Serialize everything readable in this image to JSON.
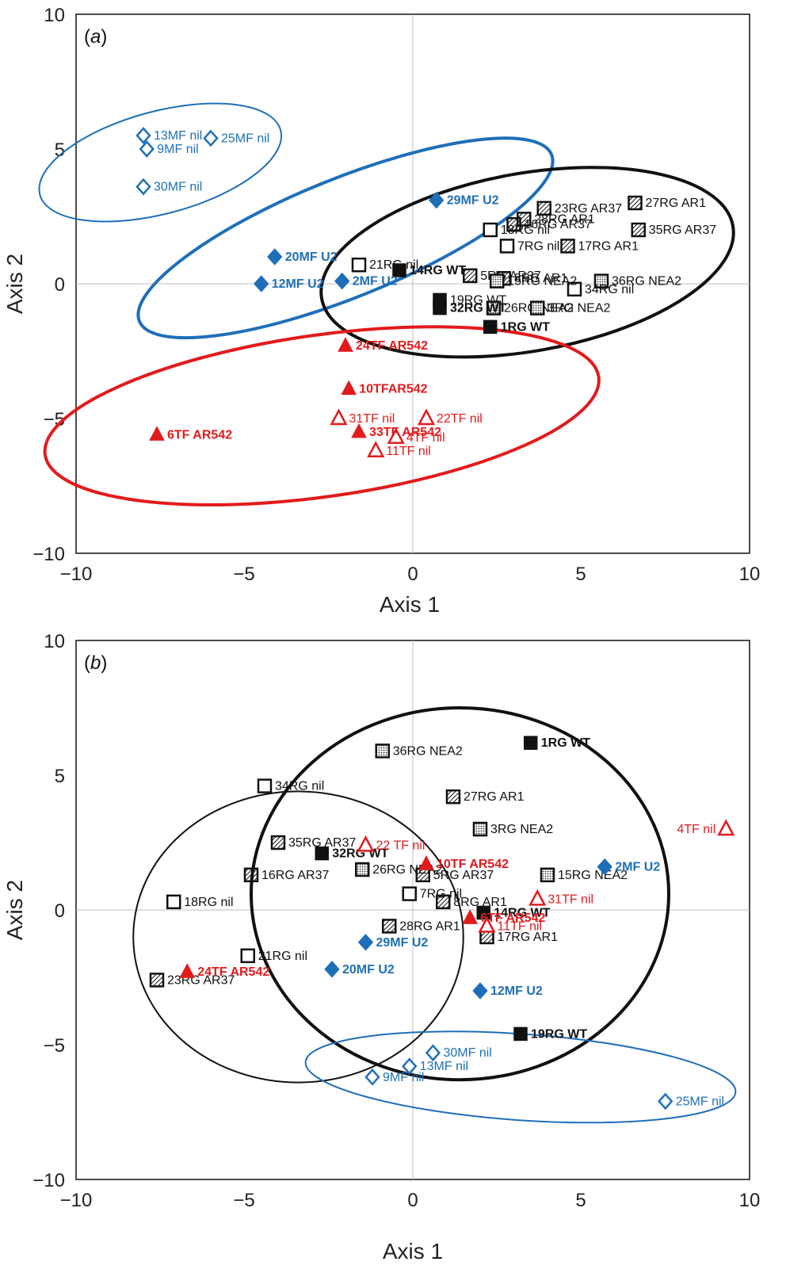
{
  "colors": {
    "rg": "#111111",
    "mf": "#1f6fb8",
    "tf": "#e31a1c",
    "grid": "#bdbdbd"
  },
  "chart_data": [
    {
      "type": "scatter",
      "panel_label": "a",
      "xlabel": "Axis 1",
      "ylabel": "Axis 2",
      "xlim": [
        -10,
        10
      ],
      "ylim": [
        -10,
        10
      ],
      "xticks": [
        "−10",
        "−5",
        "0",
        "5",
        "10"
      ],
      "yticks": [
        "10",
        "5",
        "0",
        "−5",
        "−10"
      ],
      "points": [
        {
          "label": "27RG AR1",
          "x": 6.6,
          "y": 3.0,
          "marker": "hatch",
          "color": "rg",
          "bold": false
        },
        {
          "label": "23RG AR37",
          "x": 3.9,
          "y": 2.8,
          "marker": "hatch",
          "color": "rg",
          "bold": false
        },
        {
          "label": "28RG AR1",
          "x": 3.3,
          "y": 2.4,
          "marker": "hatch",
          "color": "rg",
          "bold": false
        },
        {
          "label": "16RG AR37",
          "x": 3.0,
          "y": 2.2,
          "marker": "hatch",
          "color": "rg",
          "bold": false
        },
        {
          "label": "35RG AR37",
          "x": 6.7,
          "y": 2.0,
          "marker": "hatch",
          "color": "rg",
          "bold": false
        },
        {
          "label": "18RG nil",
          "x": 2.3,
          "y": 2.0,
          "marker": "open_square",
          "color": "rg",
          "bold": false
        },
        {
          "label": "17RG AR1",
          "x": 4.6,
          "y": 1.4,
          "marker": "hatch",
          "color": "rg",
          "bold": false
        },
        {
          "label": "21RG nil",
          "x": -1.6,
          "y": 0.7,
          "marker": "open_square",
          "color": "rg",
          "bold": false
        },
        {
          "label": "5RG AR37",
          "x": 1.7,
          "y": 0.3,
          "marker": "hatch",
          "color": "rg",
          "bold": false
        },
        {
          "label": "7RG nil",
          "x": 2.8,
          "y": 1.4,
          "marker": "open_square",
          "color": "rg",
          "bold": false
        },
        {
          "label": "36RG NEA2",
          "x": 5.6,
          "y": 0.1,
          "marker": "dots",
          "color": "rg",
          "bold": false
        },
        {
          "label": "8RG AR1",
          "x": 2.7,
          "y": 0.2,
          "marker": "hatch",
          "color": "rg",
          "bold": false
        },
        {
          "label": "34RG nil",
          "x": 4.8,
          "y": -0.2,
          "marker": "open_square",
          "color": "rg",
          "bold": false
        },
        {
          "label": "14RG WT",
          "x": -0.4,
          "y": 0.5,
          "marker": "filled_square",
          "color": "rg",
          "bold": true
        },
        {
          "label": "19RG WT",
          "x": 0.8,
          "y": -0.6,
          "marker": "filled_square",
          "color": "rg",
          "bold": false
        },
        {
          "label": "26RG NEA2",
          "x": 2.4,
          "y": -0.9,
          "marker": "dots",
          "color": "rg",
          "bold": false
        },
        {
          "label": "3RG NEA2",
          "x": 3.7,
          "y": -0.9,
          "marker": "dots",
          "color": "rg",
          "bold": false
        },
        {
          "label": "15RG NEA2",
          "x": 2.5,
          "y": 0.1,
          "marker": "dots",
          "color": "rg",
          "bold": false
        },
        {
          "label": "32RG WT",
          "x": 0.8,
          "y": -0.9,
          "marker": "filled_square",
          "color": "rg",
          "bold": true
        },
        {
          "label": "1RG WT",
          "x": 2.3,
          "y": -1.6,
          "marker": "filled_square",
          "color": "rg",
          "bold": true
        },
        {
          "label": "13MF nil",
          "x": -8.0,
          "y": 5.5,
          "marker": "open_diamond",
          "color": "mf",
          "bold": false
        },
        {
          "label": "25MF nil",
          "x": -6.0,
          "y": 5.4,
          "marker": "open_diamond",
          "color": "mf",
          "bold": false
        },
        {
          "label": "9MF nil",
          "x": -7.9,
          "y": 5.0,
          "marker": "open_diamond",
          "color": "mf",
          "bold": false
        },
        {
          "label": "30MF nil",
          "x": -8.0,
          "y": 3.6,
          "marker": "open_diamond",
          "color": "mf",
          "bold": false
        },
        {
          "label": "29MF U2",
          "x": 0.7,
          "y": 3.1,
          "marker": "filled_diamond",
          "color": "mf",
          "bold": true
        },
        {
          "label": "20MF U2",
          "x": -4.1,
          "y": 1.0,
          "marker": "filled_diamond",
          "color": "mf",
          "bold": true
        },
        {
          "label": "2MF U2",
          "x": -2.1,
          "y": 0.1,
          "marker": "filled_diamond",
          "color": "mf",
          "bold": true
        },
        {
          "label": "12MF U2",
          "x": -4.5,
          "y": 0.0,
          "marker": "filled_diamond",
          "color": "mf",
          "bold": true
        },
        {
          "label": "24TF AR542",
          "x": -2.0,
          "y": -2.3,
          "marker": "filled_triangle",
          "color": "tf",
          "bold": true
        },
        {
          "label": "10TFAR542",
          "x": -1.9,
          "y": -3.9,
          "marker": "filled_triangle",
          "color": "tf",
          "bold": true
        },
        {
          "label": "22TF nil",
          "x": 0.4,
          "y": -5.0,
          "marker": "open_triangle",
          "color": "tf",
          "bold": false
        },
        {
          "label": "6TF AR542",
          "x": -7.6,
          "y": -5.6,
          "marker": "filled_triangle",
          "color": "tf",
          "bold": true
        },
        {
          "label": "31TF nil",
          "x": -2.2,
          "y": -5.0,
          "marker": "open_triangle",
          "color": "tf",
          "bold": false
        },
        {
          "label": "4TF nil",
          "x": -0.5,
          "y": -5.7,
          "marker": "open_triangle",
          "color": "tf",
          "bold": false
        },
        {
          "label": "33TF AR542",
          "x": -1.6,
          "y": -5.5,
          "marker": "filled_triangle",
          "color": "tf",
          "bold": true
        },
        {
          "label": "11TF nil",
          "x": -1.1,
          "y": -6.2,
          "marker": "open_triangle",
          "color": "tf",
          "bold": false
        }
      ],
      "ellipses": [
        {
          "group": "MF nil",
          "cx": -7.5,
          "cy": 4.5,
          "rx": 3.7,
          "ry": 1.9,
          "angle": 15,
          "color": "mf",
          "width": 2
        },
        {
          "group": "MF U2",
          "cx": -2.0,
          "cy": 1.7,
          "rx": 6.6,
          "ry": 2.2,
          "angle": 22,
          "color": "mf",
          "width": 4
        },
        {
          "group": "RG",
          "cx": 3.4,
          "cy": 0.8,
          "rx": 6.2,
          "ry": 3.3,
          "angle": 10,
          "color": "rg",
          "width": 4
        },
        {
          "group": "TF",
          "cx": -2.7,
          "cy": -4.9,
          "rx": 8.3,
          "ry": 3.0,
          "angle": 8,
          "color": "tf",
          "width": 4
        }
      ]
    },
    {
      "type": "scatter",
      "panel_label": "b",
      "xlabel": "Axis 1",
      "ylabel": "Axis 2",
      "xlim": [
        -10,
        10
      ],
      "ylim": [
        -10,
        10
      ],
      "xticks": [
        "−10",
        "−5",
        "0",
        "5",
        "10"
      ],
      "yticks": [
        "10",
        "5",
        "0",
        "−5",
        "−10"
      ],
      "points": [
        {
          "label": "36RG NEA2",
          "x": -0.9,
          "y": 5.9,
          "marker": "dots",
          "color": "rg",
          "bold": false
        },
        {
          "label": "1RG WT",
          "x": 3.5,
          "y": 6.2,
          "marker": "filled_square",
          "color": "rg",
          "bold": true
        },
        {
          "label": "34RG nil",
          "x": -4.4,
          "y": 4.6,
          "marker": "open_square",
          "color": "rg",
          "bold": false
        },
        {
          "label": "27RG AR1",
          "x": 1.2,
          "y": 4.2,
          "marker": "hatch",
          "color": "rg",
          "bold": false
        },
        {
          "label": "35RG AR37",
          "x": -4.0,
          "y": 2.5,
          "marker": "hatch",
          "color": "rg",
          "bold": false
        },
        {
          "label": "3RG NEA2",
          "x": 2.0,
          "y": 3.0,
          "marker": "dots",
          "color": "rg",
          "bold": false
        },
        {
          "label": "32RG WT",
          "x": -2.7,
          "y": 2.1,
          "marker": "filled_square",
          "color": "rg",
          "bold": true
        },
        {
          "label": "16RG AR37",
          "x": -4.8,
          "y": 1.3,
          "marker": "hatch",
          "color": "rg",
          "bold": false
        },
        {
          "label": "26RG NEA2",
          "x": -1.5,
          "y": 1.5,
          "marker": "dots",
          "color": "rg",
          "bold": false
        },
        {
          "label": "5RG AR37",
          "x": 0.3,
          "y": 1.3,
          "marker": "hatch",
          "color": "rg",
          "bold": false
        },
        {
          "label": "15RG NEA2",
          "x": 4.0,
          "y": 1.3,
          "marker": "dots",
          "color": "rg",
          "bold": false
        },
        {
          "label": "18RG nil",
          "x": -7.1,
          "y": 0.3,
          "marker": "open_square",
          "color": "rg",
          "bold": false
        },
        {
          "label": "7RG nil",
          "x": -0.1,
          "y": 0.6,
          "marker": "open_square",
          "color": "rg",
          "bold": false
        },
        {
          "label": "8RG AR1",
          "x": 0.9,
          "y": 0.3,
          "marker": "hatch",
          "color": "rg",
          "bold": false
        },
        {
          "label": "28RG AR1",
          "x": -0.7,
          "y": -0.6,
          "marker": "hatch",
          "color": "rg",
          "bold": false
        },
        {
          "label": "14RG WT",
          "x": 2.1,
          "y": -0.1,
          "marker": "filled_square",
          "color": "rg",
          "bold": true
        },
        {
          "label": "17RG AR1",
          "x": 2.2,
          "y": -1.0,
          "marker": "hatch",
          "color": "rg",
          "bold": false
        },
        {
          "label": "21RG nil",
          "x": -4.9,
          "y": -1.7,
          "marker": "open_square",
          "color": "rg",
          "bold": false
        },
        {
          "label": "23RG AR37",
          "x": -7.6,
          "y": -2.6,
          "marker": "hatch",
          "color": "rg",
          "bold": false
        },
        {
          "label": "19RG WT",
          "x": 3.2,
          "y": -4.6,
          "marker": "filled_square",
          "color": "rg",
          "bold": true
        },
        {
          "label": "22 TF nil",
          "x": -1.4,
          "y": 2.4,
          "marker": "open_triangle",
          "color": "tf",
          "bold": false
        },
        {
          "label": "10TF AR542",
          "x": 0.4,
          "y": 1.7,
          "marker": "filled_triangle",
          "color": "tf",
          "bold": true
        },
        {
          "label": "4TF nil",
          "x": 9.3,
          "y": 3.0,
          "marker": "open_triangle",
          "color": "tf",
          "bold": false
        },
        {
          "label": "31TF nil",
          "x": 3.7,
          "y": 0.4,
          "marker": "open_triangle",
          "color": "tf",
          "bold": false
        },
        {
          "label": "6TF AR542",
          "x": 1.7,
          "y": -0.3,
          "marker": "filled_triangle",
          "color": "tf",
          "bold": true
        },
        {
          "label": "11TF nil",
          "x": 2.2,
          "y": -0.6,
          "marker": "open_triangle",
          "color": "tf",
          "bold": false
        },
        {
          "label": "24TF AR542",
          "x": -6.7,
          "y": -2.3,
          "marker": "filled_triangle",
          "color": "tf",
          "bold": true
        },
        {
          "label": "2MF U2",
          "x": 5.7,
          "y": 1.6,
          "marker": "filled_diamond",
          "color": "mf",
          "bold": true
        },
        {
          "label": "29MF U2",
          "x": -1.4,
          "y": -1.2,
          "marker": "filled_diamond",
          "color": "mf",
          "bold": true
        },
        {
          "label": "20MF U2",
          "x": -2.4,
          "y": -2.2,
          "marker": "filled_diamond",
          "color": "mf",
          "bold": true
        },
        {
          "label": "12MF U2",
          "x": 2.0,
          "y": -3.0,
          "marker": "filled_diamond",
          "color": "mf",
          "bold": true
        },
        {
          "label": "30MF nil",
          "x": 0.6,
          "y": -5.3,
          "marker": "open_diamond",
          "color": "mf",
          "bold": false
        },
        {
          "label": "13MF nil",
          "x": -0.1,
          "y": -5.8,
          "marker": "open_diamond",
          "color": "mf",
          "bold": false
        },
        {
          "label": "9MF nil",
          "x": -1.2,
          "y": -6.2,
          "marker": "open_diamond",
          "color": "mf",
          "bold": false
        },
        {
          "label": "25MF nil",
          "x": 7.5,
          "y": -7.1,
          "marker": "open_diamond",
          "color": "mf",
          "bold": false
        }
      ],
      "ellipses": [
        {
          "group": "left",
          "cx": -3.4,
          "cy": -1.0,
          "rx": 4.9,
          "ry": 5.4,
          "angle": 0,
          "color": "rg",
          "width": 2
        },
        {
          "group": "right",
          "cx": 1.4,
          "cy": 0.6,
          "rx": 6.2,
          "ry": 6.9,
          "angle": 0,
          "color": "rg",
          "width": 4
        },
        {
          "group": "MF nil",
          "cx": 3.2,
          "cy": -6.2,
          "rx": 6.4,
          "ry": 1.6,
          "angle": -4,
          "color": "mf",
          "width": 2
        }
      ]
    }
  ]
}
